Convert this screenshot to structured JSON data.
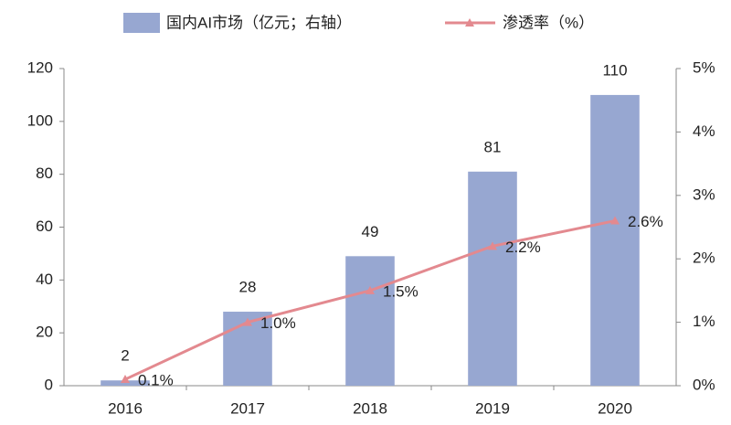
{
  "chart_data": {
    "type": "bar_line",
    "categories": [
      "2016",
      "2017",
      "2018",
      "2019",
      "2020"
    ],
    "series": [
      {
        "name": "国内AI市场（亿元；右轴）",
        "type": "bar",
        "color": "#97a7d1",
        "values": [
          2,
          28,
          49,
          81,
          110
        ]
      },
      {
        "name": "渗透率（%）",
        "type": "line",
        "axis": "y2",
        "color": "#e3898f",
        "values": [
          0.1,
          1.0,
          1.5,
          2.2,
          2.6
        ],
        "value_labels": [
          "0.1%",
          "1.0%",
          "1.5%",
          "2.2%",
          "2.6%"
        ]
      }
    ],
    "ylim": [
      0,
      120
    ],
    "yticks": [
      0,
      20,
      40,
      60,
      80,
      100,
      120
    ],
    "y2lim": [
      0,
      5
    ],
    "y2ticks": [
      {
        "value": 0,
        "label": "0%"
      },
      {
        "value": 1,
        "label": "1%"
      },
      {
        "value": 2,
        "label": "2%"
      },
      {
        "value": 3,
        "label": "3%"
      },
      {
        "value": 4,
        "label": "4%"
      },
      {
        "value": 5,
        "label": "5%"
      }
    ]
  }
}
